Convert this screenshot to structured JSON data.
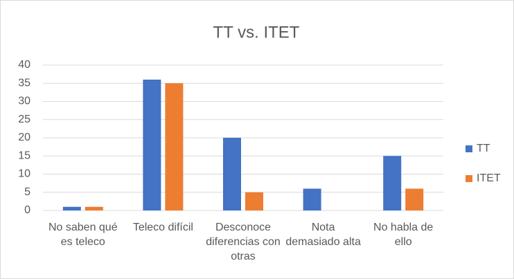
{
  "chart_data": {
    "type": "bar",
    "title": "TT vs. ITET",
    "categories": [
      "No saben qué es teleco",
      "Teleco difícil",
      "Desconoce diferencias con otras",
      "Nota demasiado alta",
      "No habla de ello"
    ],
    "series": [
      {
        "name": "TT",
        "color": "#4472c4",
        "values": [
          1,
          36,
          20,
          6,
          15
        ]
      },
      {
        "name": "ITET",
        "color": "#ed7d31",
        "values": [
          1,
          35,
          5,
          0,
          6
        ]
      }
    ],
    "ylim": [
      0,
      40
    ],
    "yticks": [
      0,
      5,
      10,
      15,
      20,
      25,
      30,
      35,
      40
    ],
    "grid": true,
    "legend": "right"
  }
}
